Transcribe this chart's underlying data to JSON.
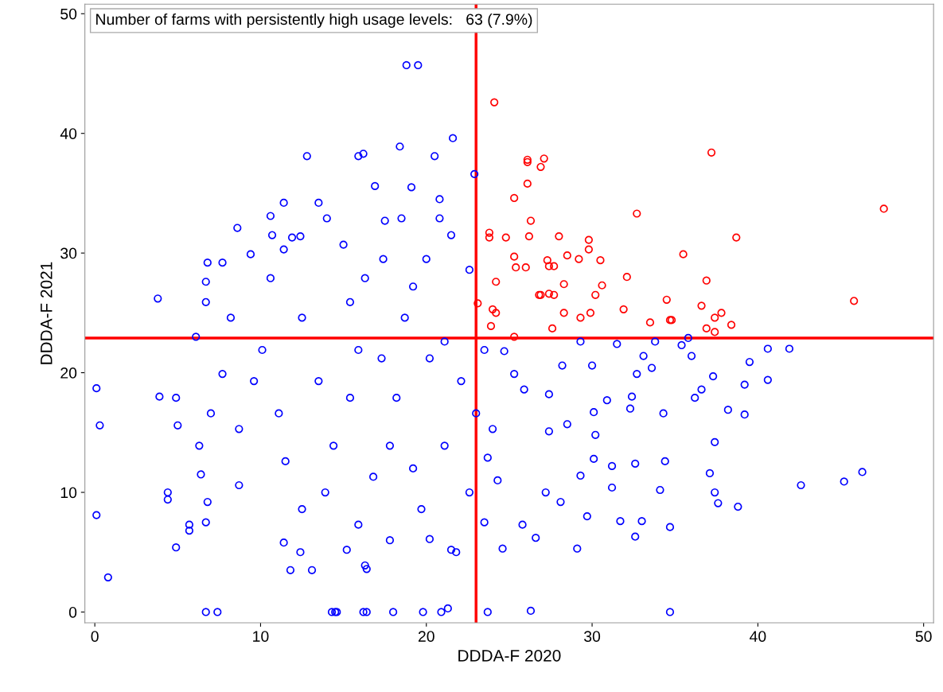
{
  "chart_data": {
    "type": "scatter",
    "xlabel": "DDDA-F 2020",
    "ylabel": "DDDA-F 2021",
    "xlim": [
      -0.6,
      50.6
    ],
    "ylim": [
      -0.9,
      50.8
    ],
    "xticks": [
      0,
      10,
      20,
      30,
      40,
      50
    ],
    "yticks": [
      0,
      10,
      20,
      30,
      40,
      50
    ],
    "grid": false,
    "legend": false,
    "marker": "circle",
    "annotations": [
      "Number of farms with persistently high usage levels:   63 (7.9%)"
    ],
    "ref_lines": [
      {
        "axis": "x",
        "value": 23,
        "color": "#ff0000"
      },
      {
        "axis": "y",
        "value": 22.9,
        "color": "#ff0000"
      }
    ],
    "series": [
      {
        "color": "#ff0000",
        "x": [
          24.1,
          26.1,
          26.1,
          27.1,
          26.9,
          47.6,
          37.2,
          25.3,
          26.1,
          32.7,
          26.3,
          23.8,
          23.8,
          24.8,
          26.2,
          28.0,
          29.8,
          38.7,
          35.5,
          27.3,
          25.3,
          30.5,
          28.5,
          29.2,
          29.8,
          25.4,
          26.0,
          27.4,
          27.7,
          32.1,
          30.6,
          36.9,
          24.2,
          28.3,
          26.8,
          26.9,
          27.4,
          27.7,
          30.2,
          23.1,
          34.5,
          36.6,
          45.8,
          31.9,
          24.0,
          24.2,
          28.3,
          29.9,
          37.8,
          37.4,
          33.5,
          34.7,
          34.8,
          38.4,
          29.3,
          23.9,
          27.6,
          36.9,
          37.4,
          25.3
        ],
        "values": [
          42.6,
          37.8,
          37.6,
          37.9,
          37.2,
          33.7,
          38.4,
          34.6,
          35.8,
          33.3,
          32.7,
          31.7,
          31.3,
          31.3,
          31.4,
          31.4,
          31.1,
          31.3,
          29.9,
          29.4,
          29.7,
          29.4,
          29.8,
          29.5,
          30.3,
          28.8,
          28.8,
          28.9,
          28.9,
          28.0,
          27.3,
          27.7,
          27.6,
          27.4,
          26.5,
          26.5,
          26.6,
          26.5,
          26.5,
          25.8,
          26.1,
          25.6,
          26.0,
          25.3,
          25.3,
          25.0,
          25.0,
          25.0,
          25.0,
          24.6,
          24.2,
          24.4,
          24.4,
          24.0,
          24.6,
          23.9,
          23.7,
          23.7,
          23.4,
          23.0
        ]
      },
      {
        "color": "#0000ff",
        "x": [
          18.8,
          19.5,
          21.6,
          18.4,
          16.2,
          15.9,
          12.8,
          20.5,
          22.9,
          19.1,
          16.9,
          11.4,
          13.5,
          20.8,
          10.6,
          20.8,
          18.5,
          14.0,
          8.6,
          17.5,
          21.5,
          12.4,
          10.7,
          11.9,
          15.0,
          6.8,
          7.7,
          9.4,
          11.4,
          17.4,
          20.0,
          3.8,
          6.7,
          0.1,
          0.3,
          0.1,
          0.8,
          3.9,
          4.4,
          4.4,
          4.9,
          5.0,
          4.9,
          5.7,
          5.7,
          6.1,
          6.4,
          6.7,
          6.7,
          7.4,
          6.8,
          6.7,
          14.3,
          14.5,
          14.6,
          16.2,
          16.4,
          18.0,
          19.8,
          20.9,
          21.3,
          23.7,
          26.3,
          34.7,
          11.8,
          13.1,
          12.4,
          15.2,
          16.3,
          16.4,
          11.4,
          20.2,
          21.5,
          21.8,
          42.6,
          45.2,
          46.3,
          40.6,
          41.9,
          40.6,
          39.5,
          39.2,
          39.2,
          38.2,
          38.8,
          37.6,
          37.4,
          37.1,
          37.4,
          37.3,
          36.6,
          36.2,
          36.0,
          35.8,
          35.4,
          34.3,
          34.4,
          34.7,
          34.1,
          32.6,
          33.0,
          32.6,
          32.3,
          32.4,
          32.7,
          33.6,
          33.1,
          33.8,
          31.5,
          31.2,
          31.7,
          31.2,
          30.9,
          30.1,
          30.2,
          29.7,
          29.1,
          29.3,
          30.1,
          30.0,
          29.3,
          28.5,
          28.1,
          27.2,
          27.4,
          26.6,
          25.8,
          24.6,
          23.5,
          23.7,
          24.3,
          25.3,
          24.7,
          28.2,
          27.4,
          13.5,
          15.9,
          18.2,
          11.1,
          14.4,
          16.8,
          19.7,
          12.5,
          8.7,
          8.7,
          7.7,
          10.1,
          12.5,
          15.4,
          18.7,
          21.1,
          22.1,
          21.1,
          22.6,
          6.3,
          8.2,
          10.6,
          16.3,
          19.2,
          22.6,
          17.3,
          20.2,
          15.4,
          11.5,
          17.8,
          19.2,
          13.9,
          15.9,
          17.8,
          9.6,
          7.0,
          23.0,
          24.0,
          25.9,
          23.5
        ],
        "values": [
          45.7,
          45.7,
          39.6,
          38.9,
          38.3,
          38.1,
          38.1,
          38.1,
          36.6,
          35.5,
          35.6,
          34.2,
          34.2,
          34.5,
          33.1,
          32.9,
          32.9,
          32.9,
          32.1,
          32.7,
          31.5,
          31.4,
          31.5,
          31.3,
          30.7,
          29.2,
          29.2,
          29.9,
          30.3,
          29.5,
          29.5,
          26.2,
          25.9,
          18.7,
          15.6,
          8.1,
          2.9,
          18.0,
          10.0,
          9.4,
          5.4,
          15.6,
          17.9,
          7.3,
          6.8,
          23.0,
          11.5,
          7.5,
          0,
          0,
          9.2,
          27.6,
          0,
          0,
          0,
          0,
          0,
          0,
          0,
          0,
          0.3,
          0,
          0.1,
          0,
          3.5,
          3.5,
          5.0,
          5.2,
          3.9,
          3.6,
          5.8,
          6.1,
          5.2,
          5.0,
          10.6,
          10.9,
          11.7,
          22.0,
          22.0,
          19.4,
          20.9,
          19.0,
          16.5,
          16.9,
          8.8,
          9.1,
          10.0,
          11.6,
          14.2,
          19.7,
          18.6,
          17.9,
          21.4,
          22.9,
          22.3,
          16.6,
          12.6,
          7.1,
          10.2,
          6.3,
          7.6,
          12.4,
          17.0,
          18.0,
          19.9,
          20.4,
          21.4,
          22.6,
          22.4,
          10.4,
          7.6,
          12.2,
          17.7,
          16.7,
          14.8,
          8.0,
          5.3,
          11.4,
          12.8,
          20.6,
          22.6,
          15.7,
          9.2,
          10.0,
          15.1,
          6.2,
          7.3,
          5.3,
          7.5,
          12.9,
          11.0,
          19.9,
          21.8,
          20.6,
          18.2,
          19.3,
          21.9,
          17.9,
          16.6,
          13.9,
          11.3,
          8.6,
          8.6,
          10.6,
          15.3,
          19.9,
          21.9,
          24.6,
          25.9,
          24.6,
          22.6,
          19.3,
          13.9,
          10.0,
          13.9,
          24.6,
          27.9,
          27.9,
          27.2,
          28.6,
          21.2,
          21.2,
          17.9,
          12.6,
          13.9,
          12.0,
          10.0,
          7.3,
          6.0,
          19.3,
          16.6,
          16.6,
          15.3,
          18.6,
          21.9
        ]
      }
    ]
  }
}
